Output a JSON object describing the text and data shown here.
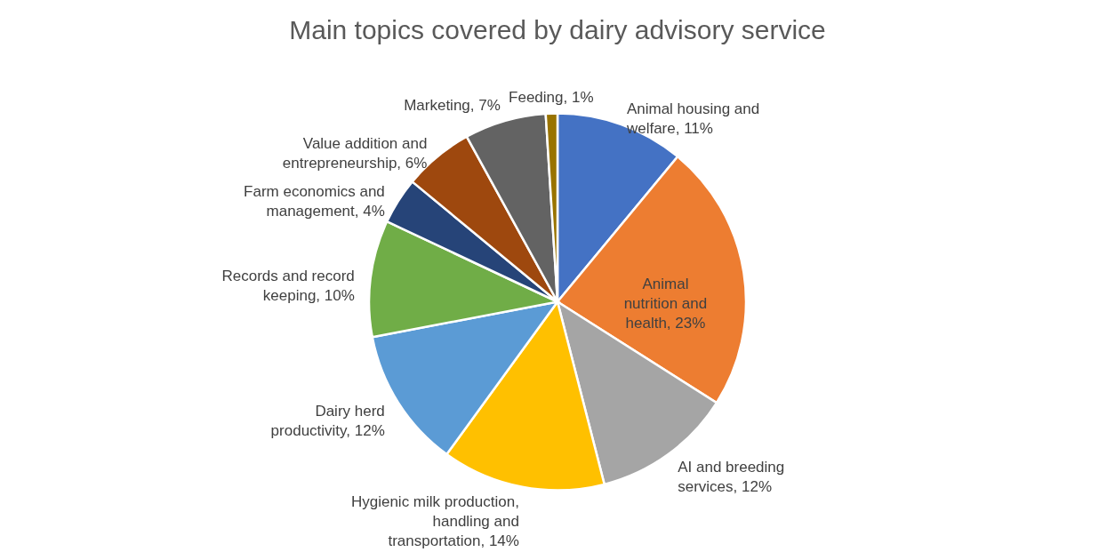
{
  "chart_data": {
    "type": "pie",
    "title": "Main topics covered by dairy advisory service",
    "categories": [
      "Animal housing and welfare",
      "Animal nutrition and health",
      "AI and breeding services",
      "Hygienic milk production, handling and transportation",
      "Dairy herd productivity",
      "Records and record keeping",
      "Farm economics and management",
      "Value addition and entrepreneurship",
      "Marketing",
      "Feeding"
    ],
    "values": [
      11,
      23,
      12,
      14,
      12,
      10,
      4,
      6,
      7,
      1
    ],
    "value_labels": [
      "11%",
      "23%",
      "12%",
      "14%",
      "12%",
      "10%",
      "4%",
      "6%",
      "7%",
      "1%"
    ],
    "colors": [
      "#4472c4",
      "#ed7d31",
      "#a5a5a5",
      "#ffc000",
      "#5b9bd5",
      "#70ad47",
      "#264478",
      "#9e480e",
      "#636363",
      "#997300"
    ],
    "legend": false
  }
}
